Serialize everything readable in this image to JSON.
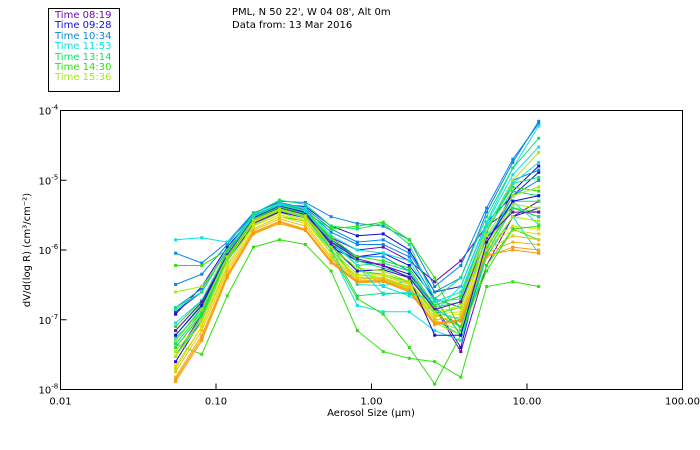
{
  "header": {
    "station": "PML, N 50 22', W 04 08', Alt 0m",
    "date": "Data from: 13 Mar 2016"
  },
  "legend": [
    {
      "label": "Time 08:19",
      "color": "#6a0dad"
    },
    {
      "label": "Time 09:28",
      "color": "#1010d8"
    },
    {
      "label": "Time 10:34",
      "color": "#0a86e8"
    },
    {
      "label": "Time 11:53",
      "color": "#10e0e0"
    },
    {
      "label": "Time 13:14",
      "color": "#10e070"
    },
    {
      "label": "Time 14:30",
      "color": "#30e010"
    },
    {
      "label": "Time 15:36",
      "color": "#a8e810"
    }
  ],
  "chart_data": {
    "type": "line",
    "xscale": "log",
    "yscale": "log",
    "xlabel": "Aerosol Size (μm)",
    "ylabel": "dV/d(log R)  (cm³/cm⁻²)",
    "xlim": [
      0.01,
      100
    ],
    "ylim": [
      1e-08,
      0.0001
    ],
    "xticks": [
      "0.01",
      "0.10",
      "1.00",
      "10.00",
      "100.00"
    ],
    "xtick_values": [
      0.01,
      0.1,
      1,
      10,
      100
    ],
    "ytick_values": [
      0.0001,
      1e-05,
      1e-06,
      1e-07,
      1e-08
    ],
    "yticks": [
      {
        "base": "10",
        "exp": "-4"
      },
      {
        "base": "10",
        "exp": "-5"
      },
      {
        "base": "10",
        "exp": "-6"
      },
      {
        "base": "10",
        "exp": "-7"
      },
      {
        "base": "10",
        "exp": "-8"
      }
    ],
    "x": [
      0.055,
      0.081,
      0.118,
      0.174,
      0.256,
      0.376,
      0.55,
      0.81,
      1.19,
      1.75,
      2.55,
      3.75,
      5.5,
      8.1,
      11.9
    ],
    "series": [
      {
        "color": "#6a0dad",
        "values": [
          1.3e-07,
          2.5e-07,
          1e-06,
          2.6e-06,
          4e-06,
          3.2e-06,
          1.5e-06,
          1e-06,
          1.1e-06,
          7e-07,
          3.5e-07,
          7e-07,
          2.2e-06,
          4e-06,
          3e-06
        ]
      },
      {
        "color": "#6a0dad",
        "values": [
          3e-08,
          1.2e-07,
          8e-07,
          2.4e-06,
          3.6e-06,
          3e-06,
          1.2e-06,
          7e-07,
          6e-07,
          4e-07,
          1.5e-07,
          3.5e-08,
          6e-07,
          3e-06,
          5e-06
        ]
      },
      {
        "color": "#1010d8",
        "values": [
          2.5e-08,
          1e-07,
          7e-07,
          2.3e-06,
          3.5e-06,
          2.9e-06,
          1.1e-06,
          7e-07,
          6e-07,
          4.5e-07,
          1.6e-07,
          4e-08,
          1.2e-06,
          7e-06,
          1.6e-05
        ]
      },
      {
        "color": "#1010d8",
        "values": [
          1.2e-07,
          3e-07,
          1.1e-06,
          3e-06,
          4.5e-06,
          4.2e-06,
          2.2e-06,
          1.6e-06,
          1.7e-06,
          1e-06,
          2.5e-07,
          3e-07,
          2.5e-06,
          6e-06,
          1.3e-05
        ]
      },
      {
        "color": "#1010d8",
        "values": [
          5e-08,
          1.5e-07,
          9e-07,
          2.8e-06,
          4.2e-06,
          3.4e-06,
          1.4e-06,
          8e-07,
          9e-07,
          6e-07,
          2e-07,
          6e-08,
          8e-07,
          3e-06,
          4e-06
        ]
      },
      {
        "color": "#0a86e8",
        "values": [
          3.2e-07,
          4.5e-07,
          1.2e-06,
          3.3e-06,
          5e-06,
          4.8e-06,
          3e-06,
          2.4e-06,
          2.2e-06,
          1.4e-06,
          3e-07,
          6e-07,
          4e-06,
          2e-05,
          6.5e-05
        ]
      },
      {
        "color": "#0a86e8",
        "values": [
          9e-07,
          6.5e-07,
          1.3e-06,
          3.4e-06,
          4.8e-06,
          4e-06,
          2e-06,
          1.3e-06,
          1.4e-06,
          9e-07,
          2.5e-07,
          4e-07,
          3.5e-06,
          1.8e-05,
          7e-05
        ]
      },
      {
        "color": "#0a86e8",
        "values": [
          1.5e-07,
          2.8e-07,
          1e-06,
          3.1e-06,
          4.6e-06,
          3.8e-06,
          1.8e-06,
          1.2e-06,
          1.2e-06,
          8e-07,
          2e-07,
          1.5e-07,
          2e-06,
          1e-05,
          1.4e-05
        ]
      },
      {
        "color": "#0a86e8",
        "values": [
          4e-08,
          1.2e-07,
          8e-07,
          2.7e-06,
          4.1e-06,
          3.3e-06,
          1.3e-06,
          8e-07,
          8e-07,
          5e-07,
          1.5e-07,
          8e-08,
          1.2e-06,
          6e-06,
          1e-05
        ]
      },
      {
        "color": "#10e0e0",
        "values": [
          1.4e-06,
          1.5e-06,
          1.3e-06,
          2.9e-06,
          4.2e-06,
          3.6e-06,
          1.4e-06,
          6e-07,
          3e-07,
          2.2e-07,
          1.3e-07,
          3e-07,
          2.5e-06,
          1.5e-05,
          6e-05
        ]
      },
      {
        "color": "#10e0e0",
        "values": [
          1.4e-07,
          2.5e-07,
          1e-06,
          3.2e-06,
          4.6e-06,
          4e-06,
          1.6e-06,
          1e-06,
          9e-07,
          7e-07,
          1.8e-07,
          2e-07,
          2.4e-06,
          1.2e-05,
          3e-05
        ]
      },
      {
        "color": "#10e0e0",
        "values": [
          3e-08,
          1e-07,
          7e-07,
          2.6e-06,
          3.8e-06,
          3e-06,
          9e-07,
          1.6e-07,
          1.3e-07,
          1.3e-07,
          7e-08,
          5e-08,
          8e-07,
          3e-06,
          9e-07
        ]
      },
      {
        "color": "#10e0e0",
        "values": [
          5.5e-08,
          1.3e-07,
          8e-07,
          2.8e-06,
          4e-06,
          3.2e-06,
          1.2e-06,
          3.2e-07,
          3.1e-07,
          3.6e-07,
          1.2e-07,
          1.5e-07,
          1.5e-06,
          5e-06,
          2.3e-06
        ]
      },
      {
        "color": "#10e070",
        "values": [
          1.5e-07,
          2.5e-07,
          1e-06,
          3.3e-06,
          5.2e-06,
          4.5e-06,
          2.2e-06,
          2e-06,
          2.4e-06,
          1.2e-06,
          2e-07,
          4e-07,
          3e-06,
          1.5e-05,
          4e-05
        ]
      },
      {
        "color": "#10e070",
        "values": [
          5e-08,
          1.5e-07,
          8e-07,
          2.9e-06,
          4.3e-06,
          3.5e-06,
          1.3e-06,
          6e-07,
          6.5e-07,
          5e-07,
          1.3e-07,
          1e-07,
          1.8e-06,
          9e-06,
          1.1e-05
        ]
      },
      {
        "color": "#10e070",
        "values": [
          3e-08,
          1.1e-07,
          7e-07,
          2.7e-06,
          4e-06,
          3.2e-06,
          1e-06,
          4e-07,
          4e-07,
          3e-07,
          1e-07,
          6e-08,
          1e-06,
          5e-06,
          5e-06
        ]
      },
      {
        "color": "#10e070",
        "values": [
          6e-08,
          1.7e-07,
          8.5e-07,
          3e-06,
          4.4e-06,
          3.6e-06,
          1.4e-06,
          7e-07,
          5.5e-07,
          4.2e-07,
          1.5e-07,
          1.8e-07,
          2e-06,
          7e-06,
          6e-06
        ]
      },
      {
        "color": "#30e010",
        "values": [
          6e-07,
          6e-07,
          1e-06,
          2e-06,
          3e-06,
          2.6e-06,
          9e-07,
          2e-07,
          1.2e-07,
          4e-08,
          1.2e-08,
          6e-08,
          6e-07,
          2e-06,
          1.4e-06
        ]
      },
      {
        "color": "#30e010",
        "values": [
          4.5e-08,
          3.2e-08,
          2.2e-07,
          1.1e-06,
          1.4e-06,
          1.2e-06,
          5e-07,
          7e-08,
          3.5e-08,
          2.8e-08,
          2.5e-08,
          1.5e-08,
          3e-07,
          3.5e-07,
          3e-07
        ]
      },
      {
        "color": "#30e010",
        "values": [
          4e-08,
          1.2e-07,
          7.5e-07,
          2.7e-06,
          3.9e-06,
          3.1e-06,
          1.1e-06,
          5e-07,
          4.5e-07,
          3.5e-07,
          1.2e-07,
          8e-08,
          1.1e-06,
          4e-06,
          3.5e-06
        ]
      },
      {
        "color": "#30e010",
        "values": [
          7e-08,
          1.8e-07,
          9e-07,
          3e-06,
          4.5e-06,
          3.7e-06,
          1.5e-06,
          8e-07,
          7e-07,
          5.5e-07,
          1.6e-07,
          2.2e-07,
          2.2e-06,
          8e-06,
          7e-06
        ]
      },
      {
        "color": "#a8e810",
        "values": [
          2.5e-07,
          3e-07,
          9e-07,
          2.6e-06,
          3.8e-06,
          3.1e-06,
          1.2e-06,
          5e-07,
          4.3e-07,
          3.2e-07,
          1.1e-07,
          1.7e-07,
          2e-06,
          1e-05,
          2.5e-05
        ]
      },
      {
        "color": "#a8e810",
        "values": [
          3.5e-08,
          1e-07,
          7e-07,
          2.5e-06,
          3.7e-06,
          2.9e-06,
          1e-06,
          4.5e-07,
          4e-07,
          3e-07,
          1e-07,
          7e-08,
          1.2e-06,
          4.5e-06,
          4e-06
        ]
      },
      {
        "color": "#a8e810",
        "values": [
          2e-08,
          8e-08,
          6e-07,
          2.3e-06,
          3.4e-06,
          2.7e-06,
          9e-07,
          4e-07,
          3.8e-07,
          2.8e-07,
          9e-08,
          6e-08,
          9e-07,
          3e-06,
          2.6e-06
        ]
      },
      {
        "color": "#d8e010",
        "values": [
          3e-08,
          9e-08,
          6e-07,
          2.2e-06,
          3.2e-06,
          2.6e-06,
          9e-07,
          4.2e-07,
          4.5e-07,
          3.3e-07,
          1.2e-07,
          1.3e-07,
          1.3e-06,
          2.2e-06,
          2e-06
        ]
      },
      {
        "color": "#e8d810",
        "values": [
          2.2e-08,
          8e-08,
          5.5e-07,
          2e-06,
          3e-06,
          2.4e-06,
          8e-07,
          4e-07,
          4e-07,
          3e-07,
          1.1e-07,
          1.2e-07,
          1.2e-06,
          1.9e-06,
          1.7e-06
        ]
      },
      {
        "color": "#f0c010",
        "values": [
          1.8e-08,
          7e-08,
          5e-07,
          1.9e-06,
          2.8e-06,
          2.2e-06,
          7.5e-07,
          3.8e-07,
          3.9e-07,
          2.9e-07,
          1e-07,
          1.1e-07,
          1e-06,
          1.6e-06,
          1.4e-06
        ]
      },
      {
        "color": "#f8b010",
        "values": [
          1.5e-08,
          6e-08,
          4.5e-07,
          1.8e-06,
          2.6e-06,
          2e-06,
          7e-07,
          3.6e-07,
          3.7e-07,
          2.7e-07,
          9e-08,
          1e-07,
          9e-07,
          1.3e-06,
          1.2e-06
        ]
      },
      {
        "color": "#f8a010",
        "values": [
          1.3e-08,
          5e-08,
          4e-07,
          1.7e-06,
          2.4e-06,
          1.9e-06,
          6.5e-07,
          3.4e-07,
          3.5e-07,
          2.5e-07,
          8.5e-08,
          9.5e-08,
          8e-07,
          1.1e-06,
          1e-06
        ]
      },
      {
        "color": "#f89810",
        "values": [
          1.4e-08,
          5.5e-08,
          4.2e-07,
          1.75e-06,
          2.5e-06,
          1.95e-06,
          6.8e-07,
          3.5e-07,
          3.6e-07,
          2.6e-07,
          8.8e-08,
          9.8e-08,
          8.5e-07,
          1e-06,
          9e-07
        ]
      },
      {
        "color": "#30e010",
        "values": [
          8e-08,
          1.9e-07,
          9.5e-07,
          2.8e-06,
          4.2e-06,
          3.5e-06,
          2e-06,
          2.2e-06,
          2.5e-06,
          1.4e-06,
          4e-07,
          7e-08,
          5e-07,
          2e-06,
          2.2e-06
        ]
      },
      {
        "color": "#10e070",
        "values": [
          4.5e-08,
          1.3e-07,
          7.8e-07,
          2.8e-06,
          4.1e-06,
          3.3e-06,
          1e-06,
          2.2e-07,
          2.4e-07,
          2.4e-07,
          2e-07,
          6e-08,
          9e-07,
          4e-06,
          3e-06
        ]
      },
      {
        "color": "#1010d8",
        "values": [
          6e-08,
          1.6e-07,
          9e-07,
          2.9e-06,
          4.3e-06,
          3.5e-06,
          1.2e-06,
          5e-07,
          5.2e-07,
          4e-07,
          6e-08,
          6e-08,
          1.3e-06,
          5e-06,
          6e-06
        ]
      },
      {
        "color": "#10e0e0",
        "values": [
          9e-08,
          1.9e-07,
          9e-07,
          3e-06,
          4.4e-06,
          3.6e-06,
          1.3e-06,
          6e-07,
          2.3e-07,
          2.5e-07,
          1.8e-07,
          2.5e-07,
          2.2e-06,
          9e-06,
          1.8e-05
        ]
      },
      {
        "color": "#6a0dad",
        "values": [
          7e-08,
          1.8e-07,
          8.5e-07,
          2.7e-06,
          4e-06,
          3.2e-06,
          1.3e-06,
          7.5e-07,
          6e-07,
          4e-07,
          1.4e-07,
          1.8e-07,
          1.5e-06,
          3.5e-06,
          3.5e-06
        ]
      },
      {
        "color": "#a8e810",
        "values": [
          5e-08,
          1.4e-07,
          8e-07,
          2.7e-06,
          3.9e-06,
          3.1e-06,
          1.1e-06,
          5.5e-07,
          5e-07,
          3.5e-07,
          1.3e-07,
          1.5e-07,
          1.6e-06,
          6e-06,
          8e-06
        ]
      }
    ]
  }
}
